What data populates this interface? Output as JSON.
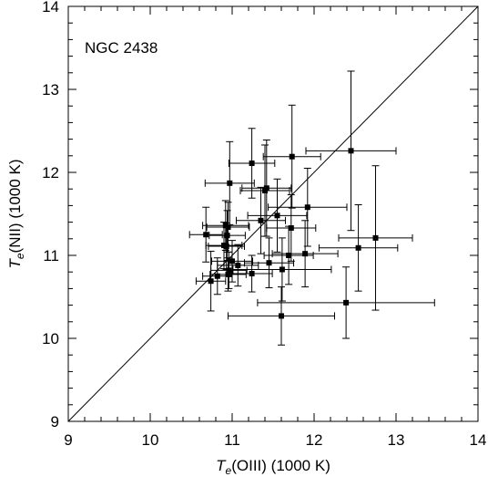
{
  "chart_data": {
    "type": "scatter",
    "title": "",
    "annotation": "NGC 2438",
    "xlabel": {
      "italic": "T",
      "sub": "e",
      "rest": "(OIII) (1000 K)"
    },
    "ylabel": {
      "italic": "T",
      "sub": "e",
      "rest": "(NII) (1000 K)"
    },
    "xlim": [
      9,
      14
    ],
    "ylim": [
      9,
      14
    ],
    "xticks": [
      "9",
      "10",
      "11",
      "12",
      "13",
      "14"
    ],
    "yticks": [
      "9",
      "10",
      "11",
      "12",
      "13",
      "14"
    ],
    "reference_line": "y = x",
    "grid": false,
    "points": [
      {
        "x": 12.45,
        "y": 12.26,
        "xerr": 0.55,
        "yerr": 0.96
      },
      {
        "x": 11.73,
        "y": 12.19,
        "xerr": 0.35,
        "yerr": 0.62
      },
      {
        "x": 11.24,
        "y": 12.11,
        "xerr": 0.28,
        "yerr": 0.42
      },
      {
        "x": 10.97,
        "y": 11.87,
        "xerr": 0.3,
        "yerr": 0.5
      },
      {
        "x": 11.42,
        "y": 11.81,
        "xerr": 0.3,
        "yerr": 0.58
      },
      {
        "x": 11.4,
        "y": 11.78,
        "xerr": 0.3,
        "yerr": 0.55
      },
      {
        "x": 11.92,
        "y": 11.58,
        "xerr": 0.48,
        "yerr": 0.47
      },
      {
        "x": 11.55,
        "y": 11.48,
        "xerr": 0.36,
        "yerr": 0.44
      },
      {
        "x": 11.35,
        "y": 11.42,
        "xerr": 0.3,
        "yerr": 0.4
      },
      {
        "x": 10.92,
        "y": 11.36,
        "xerr": 0.28,
        "yerr": 0.3
      },
      {
        "x": 10.95,
        "y": 11.34,
        "xerr": 0.26,
        "yerr": 0.3
      },
      {
        "x": 11.72,
        "y": 11.33,
        "xerr": 0.3,
        "yerr": 0.4
      },
      {
        "x": 10.68,
        "y": 11.25,
        "xerr": 0.2,
        "yerr": 0.33
      },
      {
        "x": 10.94,
        "y": 11.24,
        "xerr": 0.22,
        "yerr": 0.3
      },
      {
        "x": 12.75,
        "y": 11.21,
        "xerr": 0.45,
        "yerr": 0.87
      },
      {
        "x": 10.9,
        "y": 11.12,
        "xerr": 0.22,
        "yerr": 0.28
      },
      {
        "x": 10.93,
        "y": 11.11,
        "xerr": 0.22,
        "yerr": 0.28
      },
      {
        "x": 12.54,
        "y": 11.09,
        "xerr": 0.48,
        "yerr": 0.52
      },
      {
        "x": 11.89,
        "y": 11.02,
        "xerr": 0.4,
        "yerr": 0.4
      },
      {
        "x": 11.69,
        "y": 11.0,
        "xerr": 0.3,
        "yerr": 0.35
      },
      {
        "x": 11.0,
        "y": 10.93,
        "xerr": 0.25,
        "yerr": 0.25
      },
      {
        "x": 11.45,
        "y": 10.91,
        "xerr": 0.3,
        "yerr": 0.3
      },
      {
        "x": 11.07,
        "y": 10.88,
        "xerr": 0.25,
        "yerr": 0.25
      },
      {
        "x": 11.61,
        "y": 10.83,
        "xerr": 0.6,
        "yerr": 0.38
      },
      {
        "x": 10.96,
        "y": 10.82,
        "xerr": 0.22,
        "yerr": 0.22
      },
      {
        "x": 11.24,
        "y": 10.78,
        "xerr": 0.25,
        "yerr": 0.22
      },
      {
        "x": 10.95,
        "y": 10.77,
        "xerr": 0.22,
        "yerr": 0.2
      },
      {
        "x": 10.82,
        "y": 10.75,
        "xerr": 0.18,
        "yerr": 0.22
      },
      {
        "x": 10.74,
        "y": 10.69,
        "xerr": 0.18,
        "yerr": 0.36
      },
      {
        "x": 12.39,
        "y": 10.43,
        "xerr": 1.08,
        "yerr": 0.43
      },
      {
        "x": 11.6,
        "y": 10.27,
        "xerr": 0.65,
        "yerr": 0.35
      }
    ]
  }
}
